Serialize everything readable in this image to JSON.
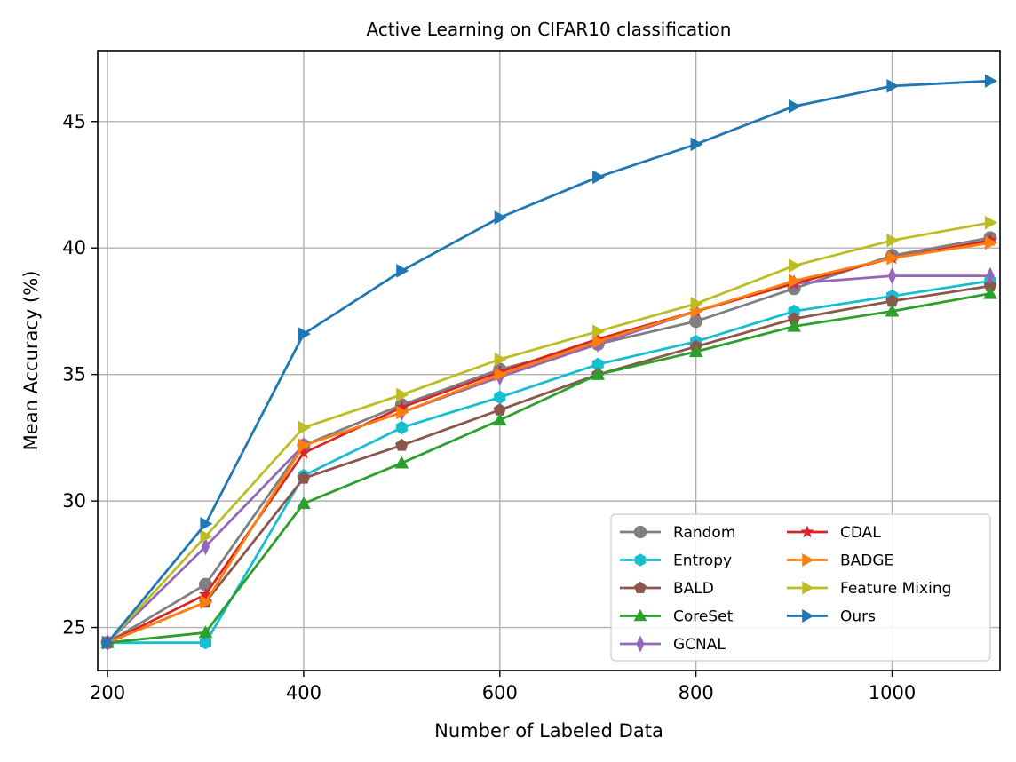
{
  "chart_data": {
    "type": "line",
    "title": "Active Learning on CIFAR10 classification",
    "xlabel": "Number of Labeled Data",
    "ylabel": "Mean Accuracy (%)",
    "x": [
      200,
      300,
      400,
      500,
      600,
      700,
      800,
      900,
      1000,
      1100
    ],
    "xlim": [
      190,
      1110
    ],
    "ylim": [
      23.3,
      47.8
    ],
    "xticks": [
      200,
      400,
      600,
      800,
      1000
    ],
    "yticks": [
      25,
      30,
      35,
      40,
      45
    ],
    "grid": true,
    "legend_position": "lower-right",
    "legend_columns": 2,
    "series": [
      {
        "name": "Random",
        "color": "#7f7f7f",
        "marker": "circle",
        "values": [
          24.4,
          26.7,
          32.2,
          33.8,
          35.2,
          36.2,
          37.1,
          38.4,
          39.7,
          40.4
        ]
      },
      {
        "name": "Entropy",
        "color": "#17becf",
        "marker": "hexagon",
        "values": [
          24.4,
          24.4,
          31.0,
          32.9,
          34.1,
          35.4,
          36.3,
          37.5,
          38.1,
          38.7
        ]
      },
      {
        "name": "BALD",
        "color": "#8c564b",
        "marker": "pentagon",
        "values": [
          24.4,
          26.0,
          30.9,
          32.2,
          33.6,
          35.0,
          36.1,
          37.2,
          37.9,
          38.5
        ]
      },
      {
        "name": "CoreSet",
        "color": "#2ca02c",
        "marker": "triangle-up",
        "values": [
          24.4,
          24.8,
          29.9,
          31.5,
          33.2,
          35.0,
          35.9,
          36.9,
          37.5,
          38.2
        ]
      },
      {
        "name": "GCNAL",
        "color": "#9467bd",
        "marker": "thin-diamond",
        "values": [
          24.4,
          28.2,
          32.2,
          33.5,
          34.9,
          36.2,
          37.5,
          38.6,
          38.9,
          38.9
        ]
      },
      {
        "name": "CDAL",
        "color": "#d62728",
        "marker": "star",
        "values": [
          24.4,
          26.3,
          31.9,
          33.7,
          35.1,
          36.4,
          37.5,
          38.6,
          39.6,
          40.3
        ]
      },
      {
        "name": "BADGE",
        "color": "#ff7f0e",
        "marker": "triangle-right",
        "values": [
          24.4,
          26.0,
          32.2,
          33.5,
          35.0,
          36.3,
          37.5,
          38.7,
          39.6,
          40.2
        ]
      },
      {
        "name": "Feature Mixing",
        "color": "#bcbd22",
        "marker": "triangle-right",
        "values": [
          24.4,
          28.6,
          32.9,
          34.2,
          35.6,
          36.7,
          37.8,
          39.3,
          40.3,
          41.0
        ]
      },
      {
        "name": "Ours",
        "color": "#1f77b4",
        "marker": "triangle-right",
        "values": [
          24.4,
          29.1,
          36.6,
          39.1,
          41.2,
          42.8,
          44.1,
          45.6,
          46.4,
          46.6
        ]
      }
    ]
  }
}
